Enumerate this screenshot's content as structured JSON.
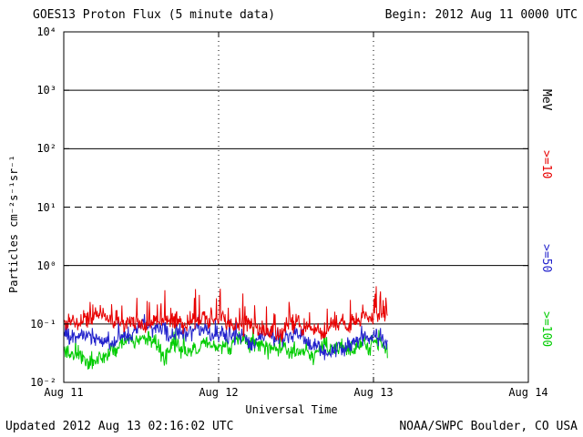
{
  "header": {
    "title": "GOES13 Proton Flux (5 minute data)",
    "begin_label": "Begin: 2012 Aug 11 0000 UTC"
  },
  "footer": {
    "updated": "Updated 2012 Aug 13 02:16:02 UTC",
    "source": "NOAA/SWPC Boulder, CO USA"
  },
  "axes": {
    "ylabel": "Particles cm⁻²s⁻¹sr⁻¹",
    "xlabel": "Universal Time",
    "x_ticks": [
      "Aug 11",
      "Aug 12",
      "Aug 13",
      "Aug 14"
    ],
    "y_exponents": [
      4,
      3,
      2,
      1,
      0,
      -1,
      -2
    ],
    "y_tick_base": "10"
  },
  "right_labels": [
    {
      "text": "MeV",
      "color": "#000000"
    },
    {
      "text": ">=10",
      "color": "#e80000"
    },
    {
      "text": ">=50",
      "color": "#2222cc"
    },
    {
      "text": ">=100",
      "color": "#00cc00"
    }
  ],
  "chart_data": {
    "type": "line",
    "title": "GOES13 Proton Flux (5 minute data)",
    "x_axis": {
      "label": "Universal Time",
      "start": "2012 Aug 11 0000 UTC",
      "end": "2012 Aug 14 0000 UTC",
      "span_hours": 72,
      "tick_labels": [
        "Aug 11",
        "Aug 12",
        "Aug 13",
        "Aug 14"
      ],
      "tick_hours": [
        0,
        24,
        48,
        72
      ]
    },
    "y_axis": {
      "label": "Particles cm⁻²s⁻¹sr⁻¹",
      "scale": "log10",
      "range": [
        0.01,
        10000
      ],
      "tick_exponents": [
        -2,
        -1,
        0,
        1,
        2,
        3,
        4
      ]
    },
    "h_gridlines": [
      {
        "exp": 3,
        "style": "solid"
      },
      {
        "exp": 2,
        "style": "solid"
      },
      {
        "exp": 1,
        "style": "dashed"
      },
      {
        "exp": 0,
        "style": "solid"
      },
      {
        "exp": -1,
        "style": "solid"
      }
    ],
    "v_gridlines_hours": [
      24,
      48
    ],
    "threshold_line": {
      "value": 10,
      "style": "dashed"
    },
    "duration_hours": 50.2,
    "cadence_minutes": 5,
    "series": [
      {
        "name": ">=10 MeV",
        "color": "#e80000",
        "approx_mean": 0.11,
        "approx_range": [
          0.06,
          0.45
        ],
        "base_log10": -1.0,
        "noise_log10": 0.22,
        "spike_prob": 0.1,
        "spike_log10": 0.45,
        "seed": 42
      },
      {
        "name": ">=50 MeV",
        "color": "#2222cc",
        "approx_mean": 0.07,
        "approx_range": [
          0.035,
          0.18
        ],
        "base_log10": -1.13,
        "noise_log10": 0.2,
        "spike_prob": 0.06,
        "spike_log10": 0.3,
        "seed": 1337
      },
      {
        "name": ">=100 MeV",
        "color": "#00cc00",
        "approx_mean": 0.033,
        "approx_range": [
          0.018,
          0.09
        ],
        "base_log10": -1.46,
        "noise_log10": 0.2,
        "spike_prob": 0.05,
        "spike_log10": 0.28,
        "seed": 2012
      }
    ]
  }
}
